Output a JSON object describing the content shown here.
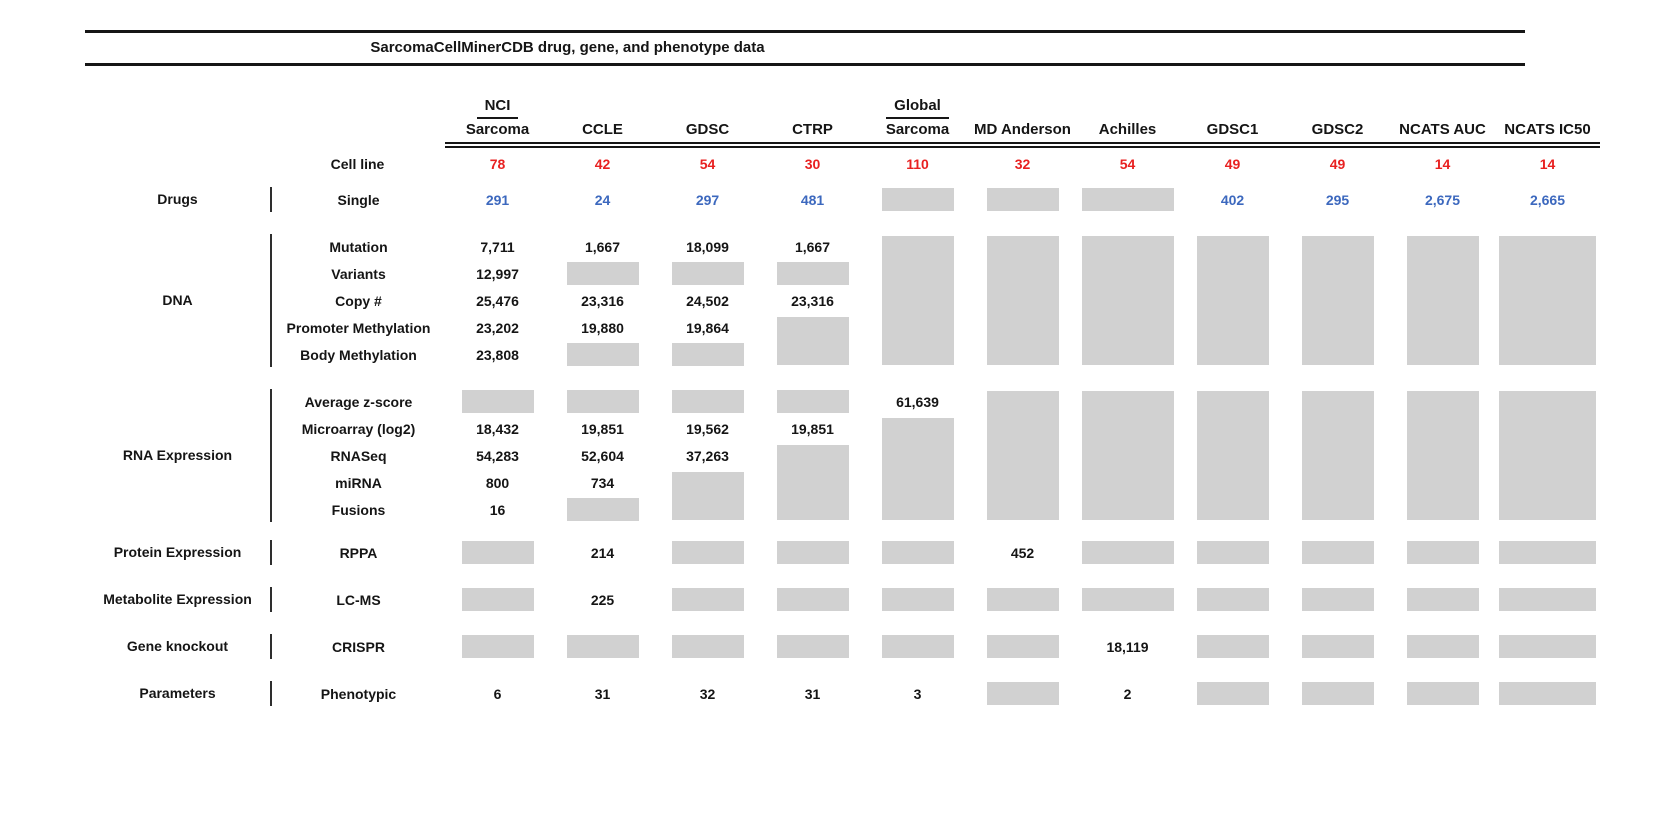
{
  "chart_data": {
    "type": "table",
    "title": "SarcomaCellMinerCDB drug, gene, and phenotype data",
    "row_header": "Cell line",
    "legend": "gray box indicates data not available",
    "colors": {
      "cell_line_red": "#e82121",
      "drug_blue": "#3c68be",
      "no_data_gray": "#d1d1d1"
    },
    "columns": [
      {
        "group": "NCI",
        "label": "Sarcoma",
        "cell_lines": "78"
      },
      {
        "group": "",
        "label": "CCLE",
        "cell_lines": "42"
      },
      {
        "group": "",
        "label": "GDSC",
        "cell_lines": "54"
      },
      {
        "group": "",
        "label": "CTRP",
        "cell_lines": "30"
      },
      {
        "group": "Global",
        "label": "Sarcoma",
        "cell_lines": "110"
      },
      {
        "group": "",
        "label": "MD Anderson",
        "cell_lines": "32"
      },
      {
        "group": "",
        "label": "Achilles",
        "cell_lines": "54"
      },
      {
        "group": "",
        "label": "GDSC1",
        "cell_lines": "49"
      },
      {
        "group": "",
        "label": "GDSC2",
        "cell_lines": "49"
      },
      {
        "group": "",
        "label": "NCATS AUC",
        "cell_lines": "14"
      },
      {
        "group": "",
        "label": "NCATS IC50",
        "cell_lines": "14"
      }
    ],
    "sections": [
      {
        "category": "Drugs",
        "rows": [
          {
            "label": "Single",
            "values": [
              "291",
              "24",
              "297",
              "481",
              "",
              "",
              "",
              "402",
              "295",
              "2,675",
              "2,665"
            ]
          }
        ]
      },
      {
        "category": "DNA",
        "rows": [
          {
            "label": "Mutation",
            "values": [
              "7,711",
              "1,667",
              "18,099",
              "1,667",
              "",
              "",
              "",
              "",
              "",
              "",
              ""
            ]
          },
          {
            "label": "Variants",
            "values": [
              "12,997",
              "",
              "",
              "",
              "",
              "",
              "",
              "",
              "",
              "",
              ""
            ]
          },
          {
            "label": "Copy #",
            "values": [
              "25,476",
              "23,316",
              "24,502",
              "23,316",
              "",
              "",
              "",
              "",
              "",
              "",
              ""
            ]
          },
          {
            "label": "Promoter Methylation",
            "values": [
              "23,202",
              "19,880",
              "19,864",
              "",
              "",
              "",
              "",
              "",
              "",
              "",
              ""
            ]
          },
          {
            "label": "Body Methylation",
            "values": [
              "23,808",
              "",
              "",
              "",
              "",
              "",
              "",
              "",
              "",
              "",
              ""
            ]
          }
        ]
      },
      {
        "category": "RNA Expression",
        "rows": [
          {
            "label": "Average z-score",
            "values": [
              "",
              "",
              "",
              "",
              "61,639",
              "",
              "",
              "",
              "",
              "",
              ""
            ]
          },
          {
            "label": "Microarray (log2)",
            "values": [
              "18,432",
              "19,851",
              "19,562",
              "19,851",
              "",
              "",
              "",
              "",
              "",
              "",
              ""
            ]
          },
          {
            "label": "RNASeq",
            "values": [
              "54,283",
              "52,604",
              "37,263",
              "",
              "",
              "",
              "",
              "",
              "",
              "",
              ""
            ]
          },
          {
            "label": "miRNA",
            "values": [
              "800",
              "734",
              "",
              "",
              "",
              "",
              "",
              "",
              "",
              "",
              ""
            ]
          },
          {
            "label": "Fusions",
            "values": [
              "16",
              "",
              "",
              "",
              "",
              "",
              "",
              "",
              "",
              "",
              ""
            ]
          }
        ]
      },
      {
        "category": "Protein Expression",
        "rows": [
          {
            "label": "RPPA",
            "values": [
              "",
              "214",
              "",
              "",
              "",
              "452",
              "",
              "",
              "",
              "",
              ""
            ]
          }
        ]
      },
      {
        "category": "Metabolite Expression",
        "rows": [
          {
            "label": "LC-MS",
            "values": [
              "",
              "225",
              "",
              "",
              "",
              "",
              "",
              "",
              "",
              "",
              ""
            ]
          }
        ]
      },
      {
        "category": "Gene knockout",
        "rows": [
          {
            "label": "CRISPR",
            "values": [
              "",
              "",
              "",
              "",
              "",
              "",
              "18,119",
              "",
              "",
              "",
              ""
            ]
          }
        ]
      },
      {
        "category": "Parameters",
        "rows": [
          {
            "label": "Phenotypic",
            "values": [
              "6",
              "31",
              "32",
              "31",
              "3",
              "",
              "2",
              "",
              "",
              "",
              ""
            ]
          }
        ]
      }
    ]
  }
}
